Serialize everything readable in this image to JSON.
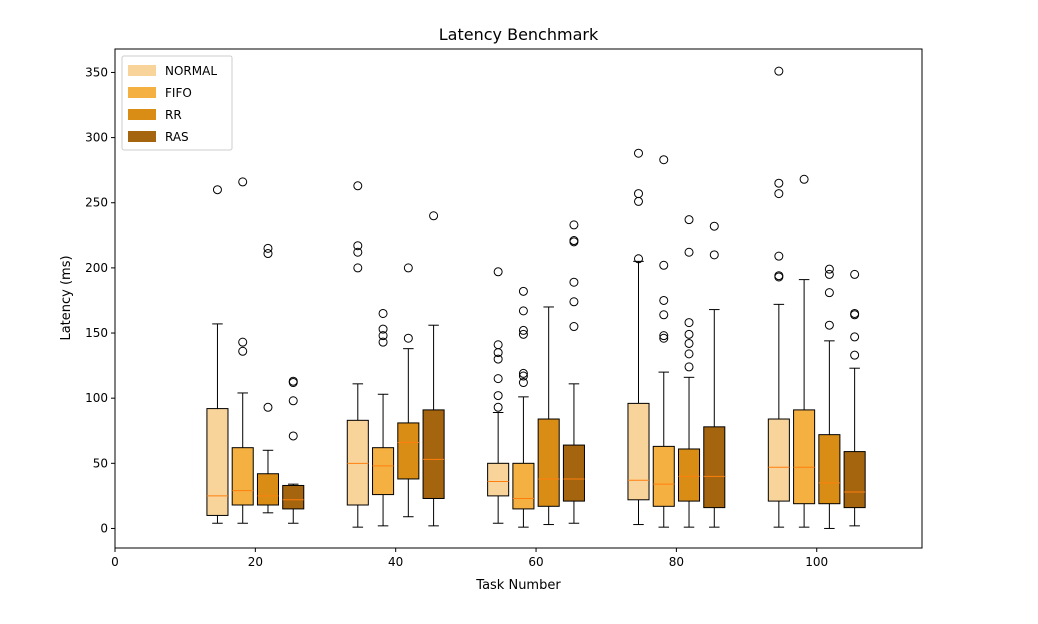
{
  "chart_data": {
    "type": "boxplot",
    "title": "Latency Benchmark",
    "xlabel": "Task Number",
    "ylabel": "Latency (ms)",
    "xlim": [
      0,
      115
    ],
    "ylim": [
      -15,
      368
    ],
    "xticks": [
      0,
      20,
      40,
      60,
      80,
      100
    ],
    "yticks": [
      0,
      50,
      100,
      150,
      200,
      250,
      300,
      350
    ],
    "grid": false,
    "legend_position": "top-left",
    "series": [
      {
        "name": "NORMAL",
        "color": "#f9d49a",
        "offset": -5.4
      },
      {
        "name": "FIFO",
        "color": "#f5b042",
        "offset": -1.8
      },
      {
        "name": "RR",
        "color": "#d98d14",
        "offset": 1.8
      },
      {
        "name": "RAS",
        "color": "#a5650f",
        "offset": 5.4
      }
    ],
    "groups": [
      {
        "task": 20,
        "boxes": [
          {
            "whislo": 4,
            "q1": 10,
            "med": 25,
            "q3": 92,
            "whishi": 157,
            "fliers": [
              260
            ]
          },
          {
            "whislo": 4,
            "q1": 18,
            "med": 29,
            "q3": 62,
            "whishi": 104,
            "fliers": [
              266,
              143,
              136
            ]
          },
          {
            "whislo": 12,
            "q1": 18,
            "med": 25,
            "q3": 42,
            "whishi": 60,
            "fliers": [
              215,
              211,
              93
            ]
          },
          {
            "whislo": 4,
            "q1": 15,
            "med": 22,
            "q3": 33,
            "whishi": 34,
            "fliers": [
              113,
              112,
              98,
              71
            ]
          }
        ]
      },
      {
        "task": 40,
        "boxes": [
          {
            "whislo": 1,
            "q1": 18,
            "med": 50,
            "q3": 83,
            "whishi": 111,
            "fliers": [
              263,
              217,
              212,
              200
            ]
          },
          {
            "whislo": 2,
            "q1": 26,
            "med": 48,
            "q3": 62,
            "whishi": 103,
            "fliers": [
              165,
              153,
              148,
              143
            ]
          },
          {
            "whislo": 9,
            "q1": 38,
            "med": 66,
            "q3": 81,
            "whishi": 138,
            "fliers": [
              200,
              146
            ]
          },
          {
            "whislo": 2,
            "q1": 23,
            "med": 53,
            "q3": 91,
            "whishi": 156,
            "fliers": [
              240
            ]
          }
        ]
      },
      {
        "task": 60,
        "boxes": [
          {
            "whislo": 4,
            "q1": 25,
            "med": 36,
            "q3": 50,
            "whishi": 89,
            "fliers": [
              197,
              141,
              135,
              130,
              115,
              102,
              93
            ]
          },
          {
            "whislo": 1,
            "q1": 15,
            "med": 23,
            "q3": 50,
            "whishi": 101,
            "fliers": [
              182,
              167,
              152,
              149,
              119,
              117,
              112
            ]
          },
          {
            "whislo": 3,
            "q1": 17,
            "med": 38,
            "q3": 84,
            "whishi": 170,
            "fliers": []
          },
          {
            "whislo": 4,
            "q1": 21,
            "med": 38,
            "q3": 64,
            "whishi": 111,
            "fliers": [
              233,
              221,
              220,
              189,
              174,
              155
            ]
          }
        ]
      },
      {
        "task": 80,
        "boxes": [
          {
            "whislo": 3,
            "q1": 22,
            "med": 37,
            "q3": 96,
            "whishi": 205,
            "fliers": [
              288,
              257,
              251,
              207
            ]
          },
          {
            "whislo": 1,
            "q1": 17,
            "med": 34,
            "q3": 63,
            "whishi": 120,
            "fliers": [
              283,
              202,
              175,
              164,
              148,
              146
            ]
          },
          {
            "whislo": 1,
            "q1": 21,
            "med": 40,
            "q3": 61,
            "whishi": 116,
            "fliers": [
              237,
              212,
              158,
              149,
              142,
              134,
              124
            ]
          },
          {
            "whislo": 1,
            "q1": 16,
            "med": 40,
            "q3": 78,
            "whishi": 168,
            "fliers": [
              232,
              210
            ]
          }
        ]
      },
      {
        "task": 100,
        "boxes": [
          {
            "whislo": 1,
            "q1": 21,
            "med": 47,
            "q3": 84,
            "whishi": 172,
            "fliers": [
              351,
              265,
              257,
              209,
              194,
              193
            ]
          },
          {
            "whislo": 1,
            "q1": 19,
            "med": 47,
            "q3": 91,
            "whishi": 191,
            "fliers": [
              268
            ]
          },
          {
            "whislo": 0,
            "q1": 19,
            "med": 35,
            "q3": 72,
            "whishi": 144,
            "fliers": [
              199,
              195,
              181,
              156
            ]
          },
          {
            "whislo": 2,
            "q1": 16,
            "med": 28,
            "q3": 59,
            "whishi": 123,
            "fliers": [
              195,
              165,
              164,
              147,
              133
            ]
          }
        ]
      }
    ]
  }
}
